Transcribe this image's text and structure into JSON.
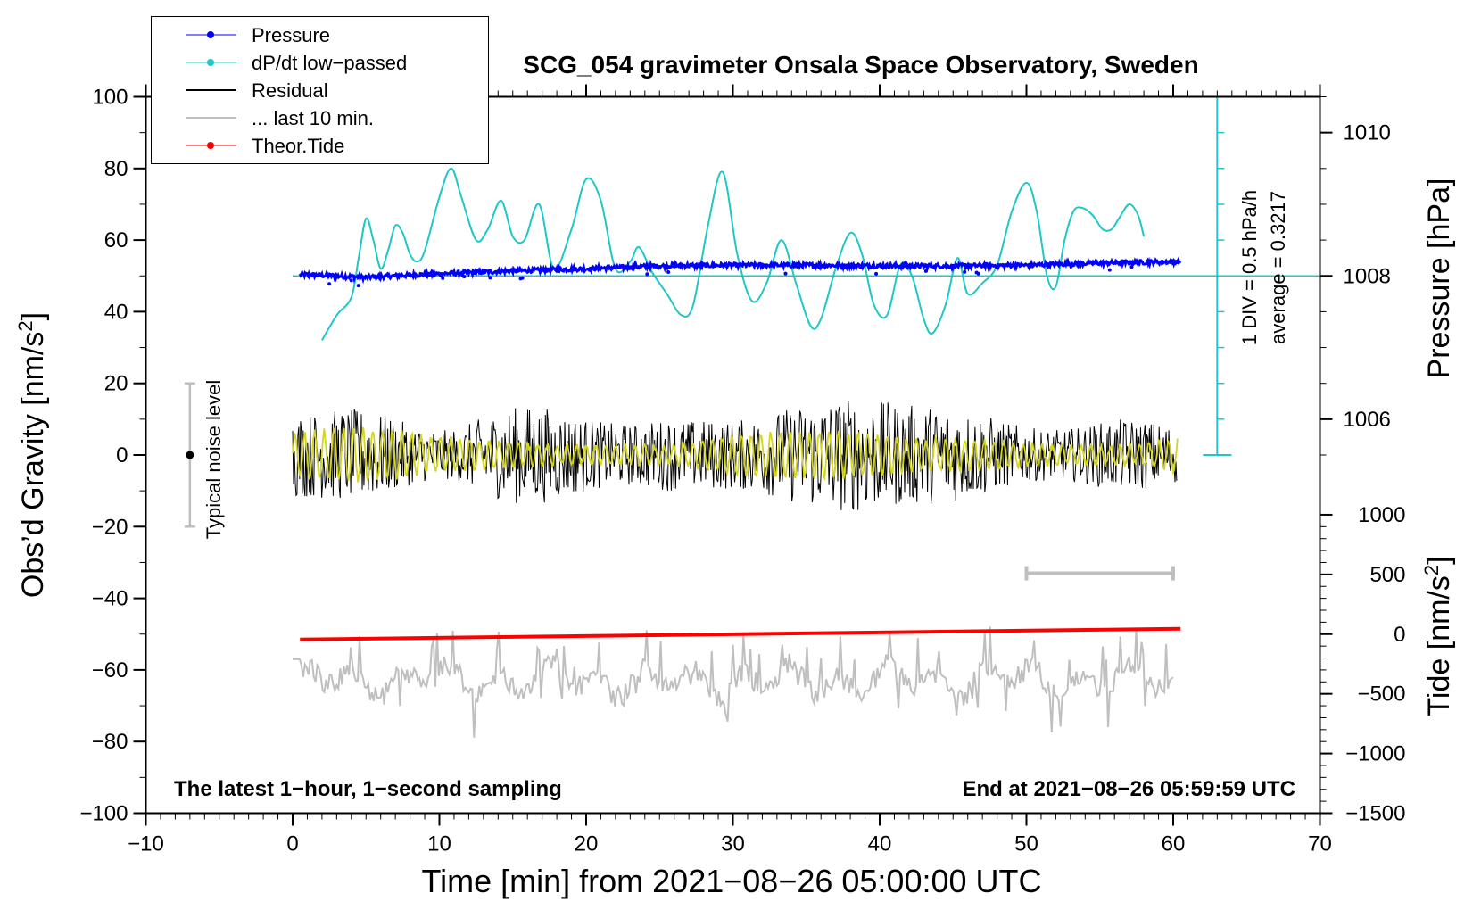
{
  "chart_data": {
    "type": "line",
    "title": "SCG_054 gravimeter Onsala Space Observatory, Sweden",
    "xlabel": "Time [min] from 2021−08−26 05:00:00 UTC",
    "ylabel": "Obs’d Gravity [nm/s",
    "ylabel_sup": "2",
    "ylabel_end": "]",
    "xlim": [
      -10,
      70
    ],
    "ylim": [
      -100,
      100
    ],
    "x_ticks": [
      -10,
      0,
      10,
      20,
      30,
      40,
      50,
      60,
      70
    ],
    "x_tick_labels": [
      "−10",
      "0",
      "10",
      "20",
      "30",
      "40",
      "50",
      "60",
      "70"
    ],
    "y_ticks": [
      -100,
      -80,
      -60,
      -40,
      -20,
      0,
      20,
      40,
      60,
      80,
      100
    ],
    "y_tick_labels": [
      "−100",
      "−80",
      "−60",
      "−40",
      "−20",
      "0",
      "20",
      "40",
      "60",
      "80",
      "100"
    ],
    "pressure_axis": {
      "label": "Pressure [hPa]",
      "ticks": [
        1006,
        1008,
        1010
      ],
      "tick_labels": [
        "1006",
        "1008",
        "1010"
      ],
      "hpa_per_gravity_unit": 0.05,
      "ref_hpa": 1008,
      "ref_gravity": 50
    },
    "tide_axis": {
      "label": "Tide [nm/s",
      "label_sup": "2",
      "label_end": "]",
      "ticks": [
        1000,
        500,
        0,
        -500,
        -1000,
        -1500
      ],
      "tick_labels": [
        "1000",
        "500",
        "0",
        "−500",
        "−1000",
        "−1500"
      ],
      "gravity_per_unit": 0.03333,
      "ref_tide": -1500,
      "ref_gravity": -100
    },
    "dpdt_scale": {
      "label1": "1 DIV = 0.5 hPa/h",
      "label2": "average = 0.3217",
      "x": 63,
      "y_top": 100,
      "y_bottom": 0,
      "divisions": 10,
      "ref_gravity": 50
    },
    "noise_bar": {
      "label": "Typical noise level",
      "x": -7,
      "y_low": -20,
      "y_high": 20,
      "center": 0
    },
    "last10_bar": {
      "x_start": 50,
      "x_end": 60,
      "y": -33
    },
    "annotations": {
      "bottom_left": "The latest 1−hour, 1−second sampling",
      "bottom_right": "End at 2021−08−26 05:59:59 UTC"
    },
    "legend": [
      {
        "label": "Pressure",
        "color": "#0000ff",
        "marker": true
      },
      {
        "label": "dP/dt low−passed",
        "color": "#1fc7c7",
        "marker": true
      },
      {
        "label": "Residual",
        "color": "#000000",
        "marker": false
      },
      {
        "label": "... last 10 min.",
        "color": "#bfbfbf",
        "marker": false
      },
      {
        "label": "Theor.Tide",
        "color": "#ff0000",
        "marker": true
      }
    ],
    "series": [
      {
        "name": "Pressure",
        "color": "#0000ff",
        "unit": "hPa",
        "x": [
          0.5,
          5,
          10,
          15,
          20,
          25,
          30,
          35,
          40,
          45,
          50,
          55,
          60.5
        ],
        "values": [
          1008.02,
          1007.98,
          1008.03,
          1008.07,
          1008.1,
          1008.14,
          1008.15,
          1008.15,
          1008.14,
          1008.14,
          1008.15,
          1008.18,
          1008.2
        ]
      },
      {
        "name": "dP/dt low−passed",
        "color": "#1fc7c7",
        "unit": "gravity axis",
        "x": [
          2,
          3,
          4,
          4.5,
          5,
          5.5,
          6,
          6.5,
          7,
          7.5,
          8,
          8.5,
          9,
          10,
          10.8,
          11.5,
          12.5,
          13.3,
          14.2,
          15,
          15.8,
          16.8,
          17.8,
          19,
          20,
          21,
          22,
          23,
          23.6,
          24.5,
          25.5,
          26.5,
          27.3,
          28.3,
          29.3,
          30.3,
          31.3,
          32.3,
          33.3,
          34.3,
          35.3,
          36,
          37,
          38,
          38.8,
          39.6,
          40.5,
          41.4,
          42.2,
          43,
          43.6,
          44.5,
          45.3,
          46,
          47,
          48,
          49,
          50,
          50.7,
          51.4,
          52,
          52.6,
          53.2,
          53.8,
          54.5,
          55.2,
          55.8,
          56.3,
          57,
          57.6,
          58
        ],
        "values": [
          32,
          39,
          44,
          55,
          66,
          60,
          52,
          57,
          64,
          62,
          56,
          54,
          57,
          72,
          80,
          72,
          60,
          63,
          71,
          61,
          60,
          70,
          52,
          63,
          77,
          71,
          52,
          54,
          58,
          51,
          45,
          39,
          42,
          64,
          79,
          56,
          43,
          48,
          60,
          48,
          36,
          38,
          52,
          62,
          56,
          42,
          39,
          53,
          50,
          38,
          34,
          42,
          55,
          45,
          48,
          53,
          68,
          76,
          68,
          50,
          47,
          60,
          68,
          69,
          67,
          63,
          63,
          66,
          70,
          67,
          61
        ]
      },
      {
        "name": "Theor.Tide",
        "color": "#ff0000",
        "unit": "gravity axis",
        "x": [
          0.5,
          60.5
        ],
        "values": [
          -51.5,
          -48.5
        ]
      }
    ]
  }
}
